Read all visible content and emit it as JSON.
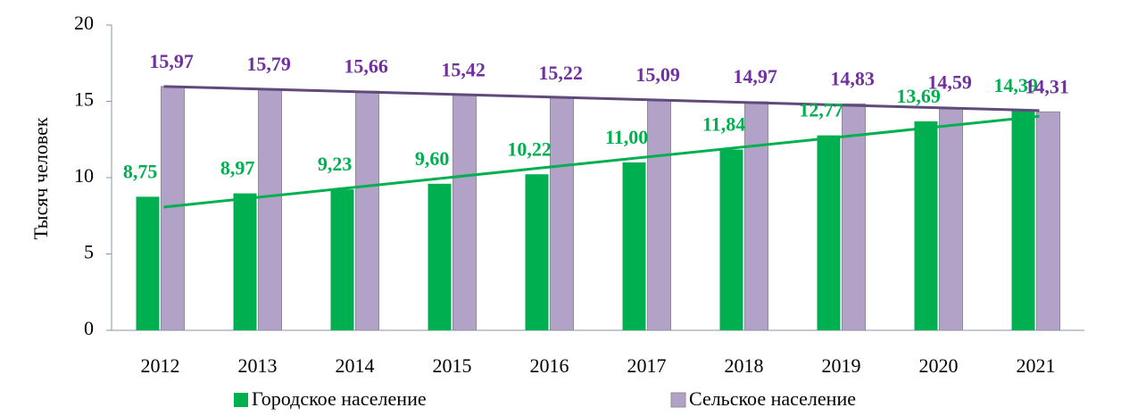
{
  "chart_data": {
    "type": "bar",
    "y_label": "Тысяч человек",
    "categories": [
      "2012",
      "2013",
      "2014",
      "2015",
      "2016",
      "2017",
      "2018",
      "2019",
      "2020",
      "2021"
    ],
    "series": [
      {
        "name": "Городское население",
        "color": "#00b050",
        "label_color": "#00b050",
        "trendline": true,
        "trend_color": "#00b050",
        "values": [
          8.75,
          8.97,
          9.23,
          9.6,
          10.22,
          11.0,
          11.84,
          12.77,
          13.69,
          14.39
        ],
        "value_labels": [
          "8,75",
          "8,97",
          "9,23",
          "9,60",
          "10,22",
          "11,00",
          "11,84",
          "12,77",
          "13,69",
          "14,39"
        ]
      },
      {
        "name": "Сельское население",
        "color": "#b3a2c7",
        "label_color": "#7030a0",
        "trendline": true,
        "trend_color": "#604a7b",
        "values": [
          15.97,
          15.79,
          15.66,
          15.42,
          15.22,
          15.09,
          14.97,
          14.83,
          14.59,
          14.31
        ],
        "value_labels": [
          "15,97",
          "15,79",
          "15,66",
          "15,42",
          "15,22",
          "15,09",
          "14,97",
          "14,83",
          "14,59",
          "14,31"
        ]
      }
    ],
    "ylim": [
      0,
      20
    ],
    "yticks": [
      0,
      5,
      10,
      15,
      20
    ],
    "grid": false,
    "legend": "bottom"
  }
}
